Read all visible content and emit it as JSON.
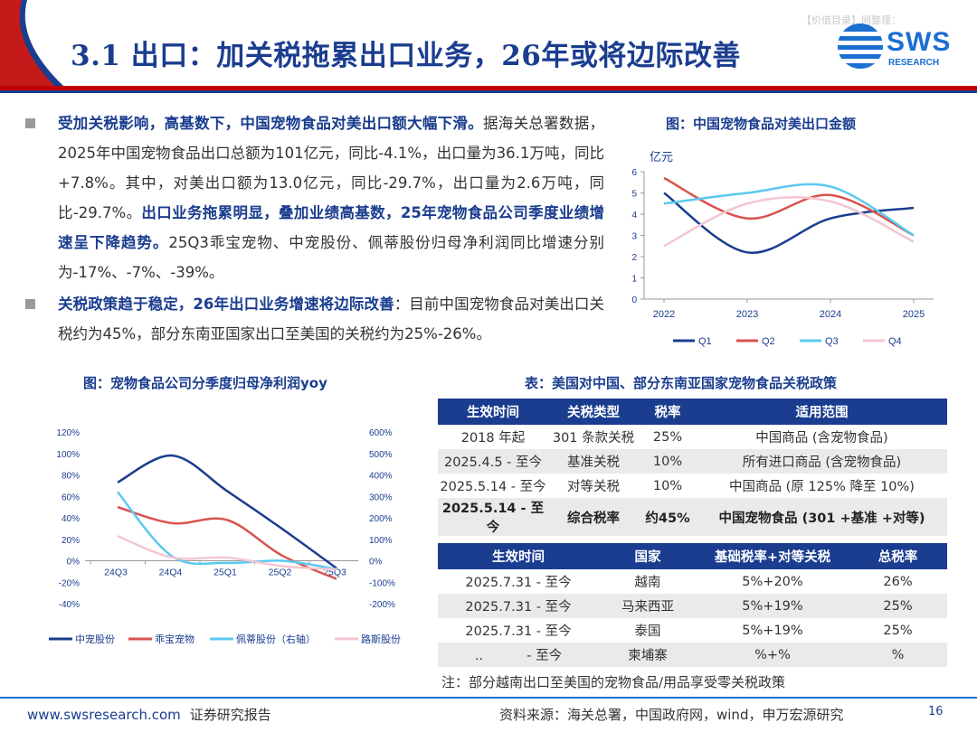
{
  "header": {
    "watermark": "【价值目录】网整理：",
    "title": "3.1 出口：加关税拖累出口业务，26年或将边际改善",
    "logo_text": "SWS",
    "logo_subtext": "RESEARCH"
  },
  "bullets": [
    {
      "b1": "受加关税影响，高基数下，中国宠物食品对美出口额大幅下滑。",
      "t1": "据海关总署数据，2025年中国宠物食品出口总额为101亿元，同比-4.1%，出口量为36.1万吨，同比+7.8%。其中，对美出口额为13.0亿元，同比-29.7%，出口量为2.6万吨，同比-29.7%。",
      "b2": "出口业务拖累明显，叠加业绩高基数，25年宠物食品公司季度业绩增速呈下降趋势。",
      "t2": "25Q3乖宝宠物、中宠股份、佩蒂股份归母净利润同比增速分别为-17%、-7%、-39%。"
    },
    {
      "b1": "关税政策趋于稳定，26年出口业务增速将边际改善",
      "t1": "：目前中国宠物食品对美出口关税约为45%，部分东南亚国家出口至美国的关税约为25%-26%。"
    }
  ],
  "chart_data": [
    {
      "type": "line",
      "title": "图：中国宠物食品对美出口金额",
      "ylabel": "亿元",
      "x": [
        "2022",
        "2023",
        "2024",
        "2025"
      ],
      "ylim": [
        0,
        6
      ],
      "yticks": [
        "0",
        "1",
        "2",
        "3",
        "4",
        "5",
        "6"
      ],
      "series": [
        {
          "name": "Q1",
          "color": "#1a3d8f",
          "values": [
            5.0,
            2.2,
            3.8,
            4.3
          ]
        },
        {
          "name": "Q2",
          "color": "#d9534f",
          "values": [
            5.7,
            3.8,
            4.9,
            3.0
          ]
        },
        {
          "name": "Q3",
          "color": "#5bc8f0",
          "values": [
            4.5,
            5.0,
            5.3,
            3.0
          ]
        },
        {
          "name": "Q4",
          "color": "#f4c6d0",
          "values": [
            2.5,
            4.5,
            4.6,
            2.7
          ]
        }
      ]
    },
    {
      "type": "line",
      "title": "图：宠物食品公司分季度归母净利润yoy",
      "x": [
        "24Q3",
        "24Q4",
        "25Q1",
        "25Q2",
        "25Q3"
      ],
      "ylim_left": [
        -40,
        120
      ],
      "ylim_right": [
        -200,
        600
      ],
      "yticks_left": [
        "-40%",
        "-20%",
        "0%",
        "20%",
        "40%",
        "60%",
        "80%",
        "100%",
        "120%"
      ],
      "yticks_right": [
        "-200%",
        "-100%",
        "0%",
        "100%",
        "200%",
        "300%",
        "400%",
        "500%",
        "600%"
      ],
      "series": [
        {
          "name": "中宠股份",
          "axis": "left",
          "color": "#1a3d8f",
          "values": [
            73,
            98,
            65,
            30,
            -7
          ]
        },
        {
          "name": "乖宝宠物",
          "axis": "left",
          "color": "#d9534f",
          "values": [
            50,
            35,
            38,
            5,
            -17
          ]
        },
        {
          "name": "佩蒂股份（右轴）",
          "axis": "right",
          "color": "#5bc8f0",
          "values": [
            320,
            20,
            -10,
            0,
            -39
          ]
        },
        {
          "name": "路斯股份",
          "axis": "left",
          "color": "#f4c6d0",
          "values": [
            23,
            3,
            3,
            -5,
            -8
          ]
        }
      ]
    }
  ],
  "table_title": "表：美国对中国、部分东南亚国家宠物食品关税政策",
  "table1": {
    "headers": [
      "生效时间",
      "关税类型",
      "税率",
      "适用范围"
    ],
    "rows": [
      [
        "2018 年起",
        "301 条款关税",
        "25%",
        "中国商品 (含宠物食品)"
      ],
      [
        "2025.4.5 - 至今",
        "基准关税",
        "10%",
        "所有进口商品 (含宠物食品)"
      ],
      [
        "2025.5.14 - 至今",
        "对等关税",
        "10%",
        "中国商品 (原 125% 降至 10%)"
      ],
      [
        "2025.5.14 - 至今",
        "综合税率",
        "约45%",
        "中国宠物食品 (301 +基准 +对等)"
      ]
    ]
  },
  "table2": {
    "headers": [
      "生效时间",
      "国家",
      "基础税率+对等关税",
      "总税率"
    ],
    "rows": [
      [
        "2025.7.31 - 至今",
        "越南",
        "5%+20%",
        "26%"
      ],
      [
        "2025.7.31 - 至今",
        "马来西亚",
        "5%+19%",
        "25%"
      ],
      [
        "2025.7.31 - 至今",
        "泰国",
        "5%+19%",
        "25%"
      ],
      [
        ".. 　　　- 至今",
        "柬埔寨",
        "%+%",
        "%"
      ]
    ]
  },
  "note": "注：部分越南出口至美国的宠物食品/用品享受零关税政策",
  "footer": {
    "url": "www.swsresearch.com",
    "label": "证券研究报告",
    "source": "资料来源：海关总署，中国政府网，wind，申万宏源研究",
    "page": "16"
  }
}
